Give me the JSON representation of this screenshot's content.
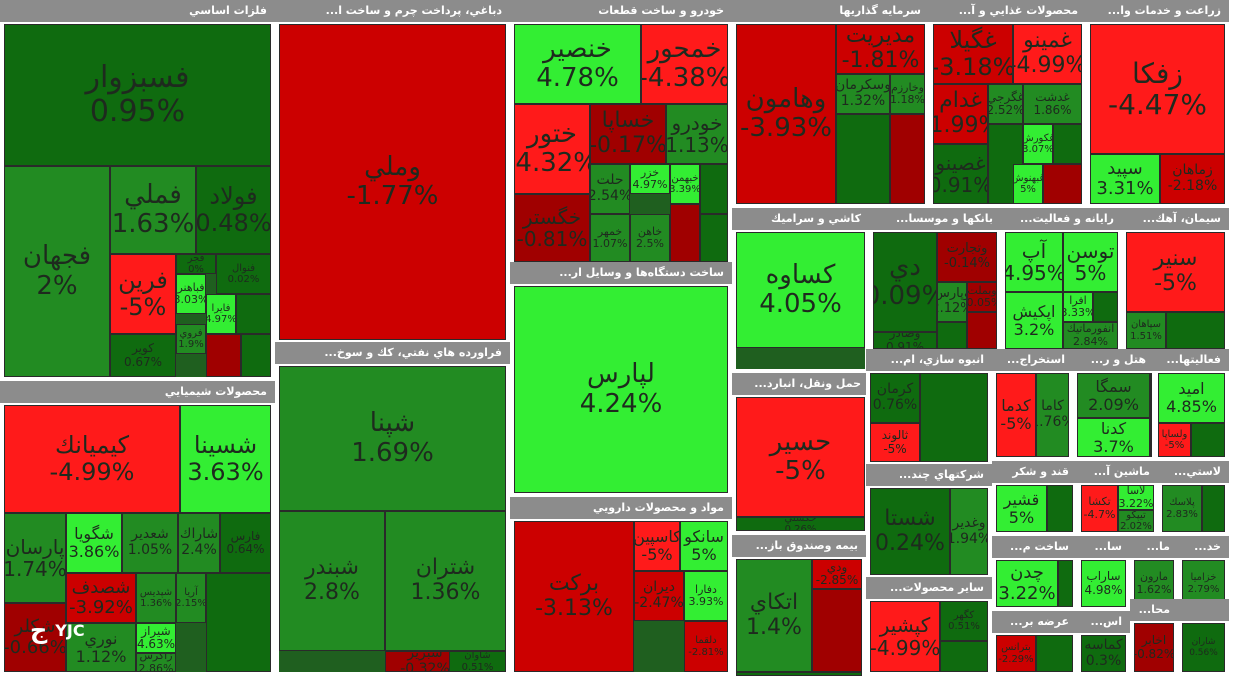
{
  "colors": {
    "bright_green": "#33ee33",
    "mid_green": "#228b22",
    "dark_green": "#0f6b0f",
    "bright_red": "#ff1a1a",
    "mid_red": "#cc0000",
    "dark_red": "#a00000",
    "header_gray": "#8c8c8c"
  },
  "watermark": {
    "text": "YJC",
    "icon": "yjc-logo-icon"
  },
  "chart_data": {
    "type": "treemap",
    "metric": "percent change",
    "sectors": [
      {
        "name": "فلزات اساسي",
        "stocks": [
          {
            "name": "فسبزوار",
            "value": 0.95
          },
          {
            "name": "فجهان",
            "value": 2
          },
          {
            "name": "فملي",
            "value": 1.63
          },
          {
            "name": "فولاد",
            "value": 0.48
          },
          {
            "name": "فرين",
            "value": -5
          },
          {
            "name": "كوير",
            "value": 0.67
          },
          {
            "name": "فباهنر",
            "value": 3.03
          },
          {
            "name": "فايرا",
            "value": 4.97
          },
          {
            "name": "فروي",
            "value": 1.9
          },
          {
            "name": "فجر",
            "value": 0
          },
          {
            "name": "فنوال",
            "value": 0.02
          }
        ]
      },
      {
        "name": "دباغي، پرداخت چرم و ساخت ا...",
        "stocks": [
          {
            "name": "وملي",
            "value": -1.77
          }
        ]
      },
      {
        "name": "خودرو و ساخت قطعات",
        "stocks": [
          {
            "name": "خنصير",
            "value": 4.78
          },
          {
            "name": "خمحور",
            "value": -4.38
          },
          {
            "name": "ختور",
            "value": -4.32
          },
          {
            "name": "خساپا",
            "value": -0.17
          },
          {
            "name": "خودرو",
            "value": 1.13
          },
          {
            "name": "خگستر",
            "value": -0.81
          },
          {
            "name": "حلت",
            "value": 2.54
          },
          {
            "name": "خزر",
            "value": 4.97
          },
          {
            "name": "خبهمن",
            "value": 3.39
          },
          {
            "name": "خمهر",
            "value": 1.07
          },
          {
            "name": "خاهن",
            "value": 2.5
          }
        ]
      },
      {
        "name": "سرمايه گذاريها",
        "stocks": [
          {
            "name": "وهامون",
            "value": -3.93
          },
          {
            "name": "مديريت",
            "value": -1.81
          },
          {
            "name": "وخارزم",
            "value": 1.18
          },
          {
            "name": "وسكرمان",
            "value": 1.32
          }
        ]
      },
      {
        "name": "محصولات غذايي و آ...",
        "stocks": [
          {
            "name": "غگيلا",
            "value": -3.18
          },
          {
            "name": "غمينو",
            "value": -4.99
          },
          {
            "name": "غدام",
            "value": -1.99
          },
          {
            "name": "غگرجي",
            "value": 2.52
          },
          {
            "name": "غدشت",
            "value": 1.86
          },
          {
            "name": "غصينو",
            "value": 0.91
          },
          {
            "name": "غكورش",
            "value": 3.07
          },
          {
            "name": "غبهنوش",
            "value": 5
          }
        ]
      },
      {
        "name": "زراعت و خدمات وا...",
        "stocks": [
          {
            "name": "زفكا",
            "value": -4.47
          },
          {
            "name": "سپيد",
            "value": 3.31
          },
          {
            "name": "زماهان",
            "value": -2.18
          }
        ]
      },
      {
        "name": "كاشي و سراميك",
        "stocks": [
          {
            "name": "كساوه",
            "value": 4.05
          }
        ]
      },
      {
        "name": "بانكها و موسسا...",
        "stocks": [
          {
            "name": "دي",
            "value": 0.09
          },
          {
            "name": "وتجارت",
            "value": -0.14
          },
          {
            "name": "وبملت",
            "value": -0.05
          },
          {
            "name": "وپارس",
            "value": 2.12
          },
          {
            "name": "وصادر",
            "value": 0.91
          }
        ]
      },
      {
        "name": "رايانه و فعاليت...",
        "stocks": [
          {
            "name": "آپ",
            "value": 4.95
          },
          {
            "name": "توسن",
            "value": 5
          },
          {
            "name": "اپكيش",
            "value": 3.2
          },
          {
            "name": "افرا",
            "value": 3.33
          },
          {
            "name": "انفورماتيك",
            "value": 2.84
          }
        ]
      },
      {
        "name": "سيمان، آهك...",
        "stocks": [
          {
            "name": "سنير",
            "value": -5
          },
          {
            "name": "سپاهان",
            "value": 1.51
          }
        ]
      },
      {
        "name": "فراورده هاي نفتي، كك و سوخ...",
        "stocks": [
          {
            "name": "شپنا",
            "value": 1.69
          },
          {
            "name": "شبندر",
            "value": 2.8
          },
          {
            "name": "شتران",
            "value": 1.36
          },
          {
            "name": "شبريز",
            "value": -0.32
          },
          {
            "name": "شاوان",
            "value": 0.51
          }
        ]
      },
      {
        "name": "ساخت دستگاه‌ها و وسايل ار...",
        "stocks": [
          {
            "name": "لپارس",
            "value": 4.24
          }
        ]
      },
      {
        "name": "محصولات شيميايي",
        "stocks": [
          {
            "name": "كيميانك",
            "value": -4.99
          },
          {
            "name": "شسينا",
            "value": 3.63
          },
          {
            "name": "پارسان",
            "value": 1.74
          },
          {
            "name": "شگويا",
            "value": 3.86
          },
          {
            "name": "شعدير",
            "value": 1.05
          },
          {
            "name": "شاراك",
            "value": 2.4
          },
          {
            "name": "فارس",
            "value": 0.64
          },
          {
            "name": "شصدف",
            "value": -3.92
          },
          {
            "name": "نوري",
            "value": 1.12
          },
          {
            "name": "شپديس",
            "value": 1.36
          },
          {
            "name": "آريا",
            "value": 2.15
          },
          {
            "name": "شيراز",
            "value": 4.63
          },
          {
            "name": "زاگرس",
            "value": 2.86
          },
          {
            "name": "شكلر",
            "value": -0.66
          }
        ]
      },
      {
        "name": "مواد و محصولات دارويي",
        "stocks": [
          {
            "name": "بركت",
            "value": -3.13
          },
          {
            "name": "كاسپين",
            "value": -5
          },
          {
            "name": "سانكو",
            "value": 5
          },
          {
            "name": "ديران",
            "value": -2.47
          },
          {
            "name": "دفارا",
            "value": 3.93
          },
          {
            "name": "دلقما",
            "value": -2.81
          }
        ]
      },
      {
        "name": "حمل ونقل، انبارد...",
        "stocks": [
          {
            "name": "حسير",
            "value": -5
          },
          {
            "name": "حكشتي",
            "value": 0.26
          }
        ]
      },
      {
        "name": "انبوه سازي، ام...",
        "stocks": [
          {
            "name": "كرمان",
            "value": 0.76
          },
          {
            "name": "ثالوند",
            "value": -5
          }
        ]
      },
      {
        "name": "شركتهاي چند...",
        "stocks": [
          {
            "name": "شستا",
            "value": 0.24
          },
          {
            "name": "وغدير",
            "value": 1.94
          }
        ]
      },
      {
        "name": "بيمه وصندوق باز...",
        "stocks": [
          {
            "name": "اتكاي",
            "value": 1.4
          },
          {
            "name": "ودي",
            "value": -2.85
          }
        ]
      },
      {
        "name": "سایر محصولات...",
        "stocks": [
          {
            "name": "كپشير",
            "value": -4.99
          },
          {
            "name": "كگهر",
            "value": 0.51
          }
        ]
      },
      {
        "name": "استخراج...",
        "stocks": [
          {
            "name": "كدما",
            "value": -5
          },
          {
            "name": "كاما",
            "value": 1.76
          }
        ]
      },
      {
        "name": "هتل و ر...",
        "stocks": [
          {
            "name": "سمگا",
            "value": 2.09
          },
          {
            "name": "كدنا",
            "value": 3.7
          }
        ]
      },
      {
        "name": "فعاليتها...",
        "stocks": [
          {
            "name": "اميد",
            "value": 4.85
          },
          {
            "name": "ولساپا",
            "value": -5
          }
        ]
      },
      {
        "name": "قند و شكر",
        "stocks": [
          {
            "name": "قشير",
            "value": 5
          }
        ]
      },
      {
        "name": "ماشين آ...",
        "stocks": [
          {
            "name": "تكشا",
            "value": -4.7
          },
          {
            "name": "لاسا",
            "value": 3.22
          },
          {
            "name": "تيپكو",
            "value": 2.02
          }
        ]
      },
      {
        "name": "لاستي...",
        "stocks": [
          {
            "name": "پلاسك",
            "value": 2.83
          }
        ]
      },
      {
        "name": "ساخت م...",
        "stocks": [
          {
            "name": "چدن",
            "value": 3.22
          }
        ]
      },
      {
        "name": "سا...",
        "stocks": [
          {
            "name": "ساراب",
            "value": 4.98
          }
        ]
      },
      {
        "name": "ما...",
        "stocks": [
          {
            "name": "مارون",
            "value": 1.62
          }
        ]
      },
      {
        "name": "خد...",
        "stocks": [
          {
            "name": "خزامیا",
            "value": 2.79
          }
        ]
      },
      {
        "name": "عرضه بر...",
        "stocks": [
          {
            "name": "بترانس",
            "value": -2.29
          }
        ]
      },
      {
        "name": "اس...",
        "stocks": [
          {
            "name": "كماسه",
            "value": 0.3
          }
        ]
      },
      {
        "name": "محا...",
        "stocks": [
          {
            "name": "اخابر",
            "value": -0.82
          }
        ]
      },
      {
        "name": "",
        "stocks": [
          {
            "name": "شاران",
            "value": 0.56
          }
        ]
      }
    ]
  }
}
